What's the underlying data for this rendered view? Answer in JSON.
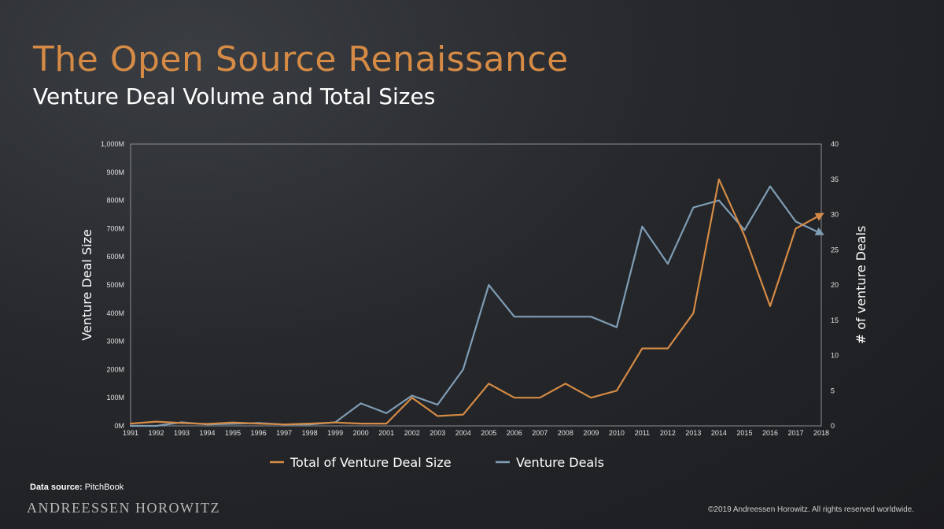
{
  "slide": {
    "title": "The Open Source Renaissance",
    "subtitle": "Venture Deal Volume and Total Sizes",
    "source_label": "Data source:",
    "source_value": "PitchBook",
    "brand": "ANDREESSEN HOROWITZ",
    "copyright": "©2019 Andreessen Horowitz. All rights reserved worldwide."
  },
  "chart_data": {
    "type": "line",
    "x": [
      "1991",
      "1992",
      "1993",
      "1994",
      "1995",
      "1996",
      "1997",
      "1998",
      "1999",
      "2000",
      "2001",
      "2002",
      "2003",
      "2004",
      "2005",
      "2006",
      "2007",
      "2008",
      "2009",
      "2010",
      "2011",
      "2012",
      "2013",
      "2014",
      "2015",
      "2016",
      "2017",
      "2018"
    ],
    "ylabel": "Venture Deal Size",
    "y2label": "# of venture Deals",
    "yticks": [
      "0M",
      "100M",
      "200M",
      "300M",
      "400M",
      "500M",
      "600M",
      "700M",
      "800M",
      "900M",
      "1,000M"
    ],
    "y2ticks": [
      "0",
      "5",
      "10",
      "15",
      "20",
      "25",
      "30",
      "35",
      "40"
    ],
    "ylim": [
      0,
      1000
    ],
    "y2lim": [
      0,
      40
    ],
    "grid": false,
    "legend_position": "bottom",
    "series": [
      {
        "name": "Total of Venture Deal Size",
        "axis": "left",
        "color": "#d58b45",
        "values": [
          8,
          15,
          10,
          7,
          12,
          8,
          5,
          8,
          12,
          8,
          8,
          100,
          35,
          40,
          150,
          100,
          100,
          150,
          100,
          125,
          275,
          275,
          400,
          875,
          675,
          425,
          700,
          750
        ]
      },
      {
        "name": "Venture Deals",
        "axis": "right",
        "color": "#7f9db5",
        "values": [
          0,
          0,
          0.5,
          0.2,
          0.3,
          0.4,
          0.2,
          0.2,
          0.5,
          3.2,
          1.8,
          4.3,
          3,
          8,
          20,
          15.5,
          15.5,
          15.5,
          15.5,
          14,
          28.3,
          23,
          31,
          32,
          27.8,
          34,
          29,
          27.3
        ]
      }
    ]
  }
}
